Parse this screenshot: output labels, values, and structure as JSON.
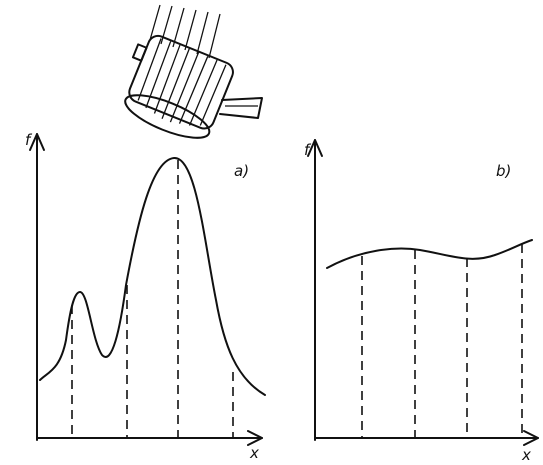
{
  "panels": [
    {
      "label": "a)",
      "y_axis": "f",
      "x_axis": "x"
    },
    {
      "label": "b)",
      "y_axis": "f",
      "x_axis": "x"
    }
  ]
}
